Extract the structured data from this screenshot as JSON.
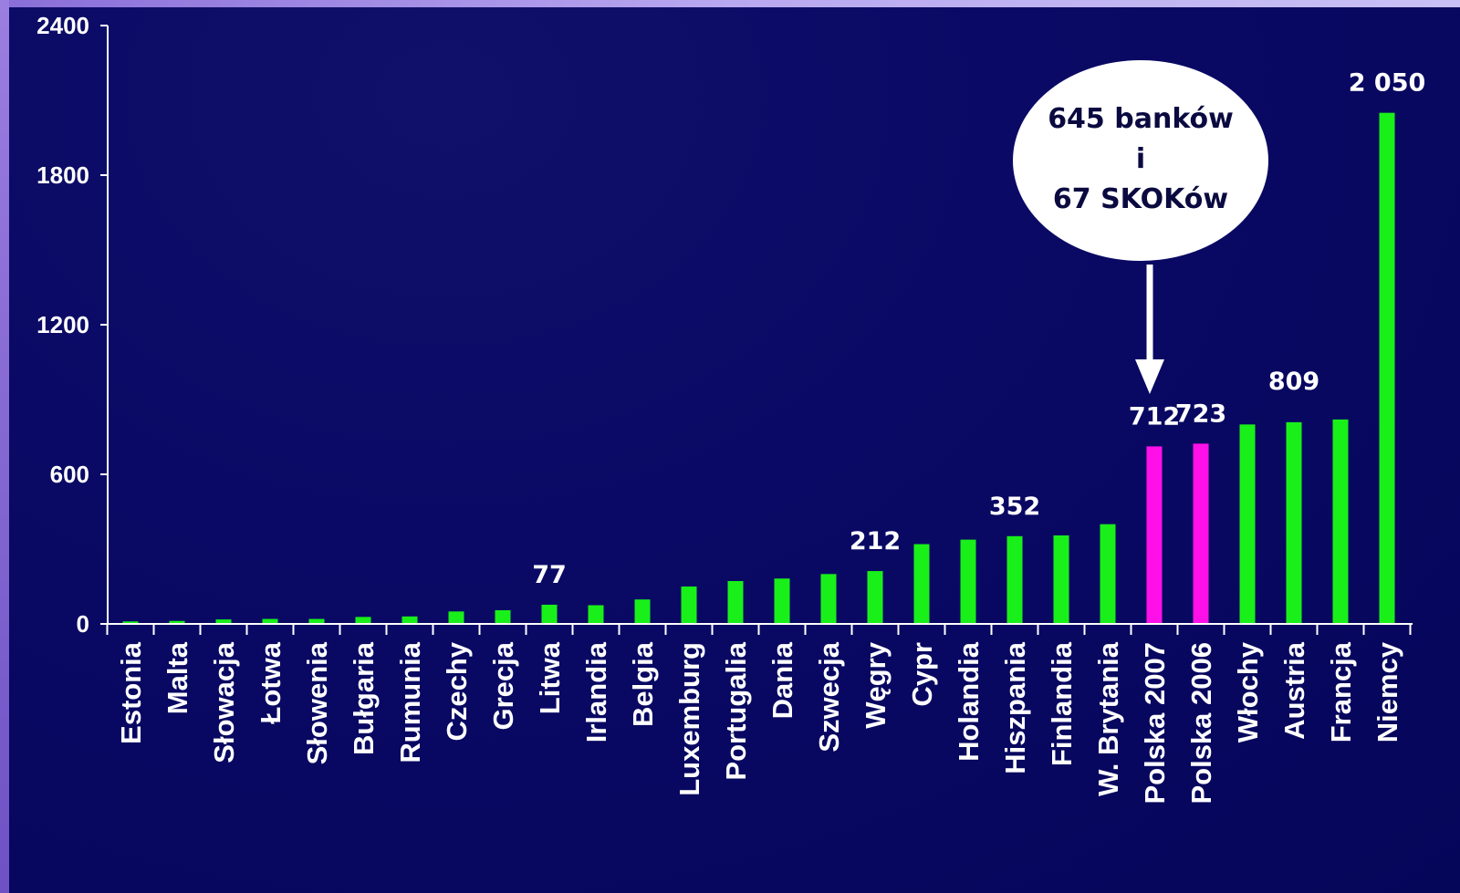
{
  "chart_data": {
    "type": "bar",
    "categories": [
      "Estonia",
      "Malta",
      "Słowacja",
      "Łotwa",
      "Słowenia",
      "Bułgaria",
      "Rumunia",
      "Czechy",
      "Grecja",
      "Litwa",
      "Irlandia",
      "Belgia",
      "Luxemburg",
      "Portugalia",
      "Dania",
      "Szwecja",
      "Węgry",
      "Cypr",
      "Holandia",
      "Hiszpania",
      "Finlandia",
      "W. Brytania",
      "Polska 2007",
      "Polska 2006",
      "Włochy",
      "Austria",
      "Francja",
      "Niemcy"
    ],
    "values": [
      10,
      12,
      18,
      20,
      20,
      28,
      30,
      50,
      55,
      77,
      75,
      98,
      150,
      172,
      182,
      200,
      212,
      320,
      338,
      352,
      355,
      400,
      712,
      723,
      800,
      809,
      820,
      2050
    ],
    "highlight_categories": [
      "Polska 2007",
      "Polska 2006"
    ],
    "data_labels": [
      {
        "category": "Litwa",
        "text": "77"
      },
      {
        "category": "Węgry",
        "text": "212"
      },
      {
        "category": "Hiszpania",
        "text": "352"
      },
      {
        "category": "Polska 2007",
        "text": "712"
      },
      {
        "category": "Polska 2006",
        "text": "723"
      },
      {
        "category": "Austria",
        "text": "809"
      },
      {
        "category": "Niemcy",
        "text": "2 050"
      }
    ],
    "y_ticks": [
      "0",
      "600",
      "1200",
      "1800",
      "2400"
    ],
    "ylim": [
      0,
      2400
    ],
    "colors": {
      "bar": "#19f019",
      "highlight": "#ff10e8",
      "text": "#ffffff",
      "axis": "#ffffff"
    },
    "title": "",
    "xlabel": "",
    "ylabel": ""
  },
  "callout": {
    "line1": "645 banków",
    "line2": "i",
    "line3": "67 SKOKów",
    "target_category": "Polska 2007"
  }
}
